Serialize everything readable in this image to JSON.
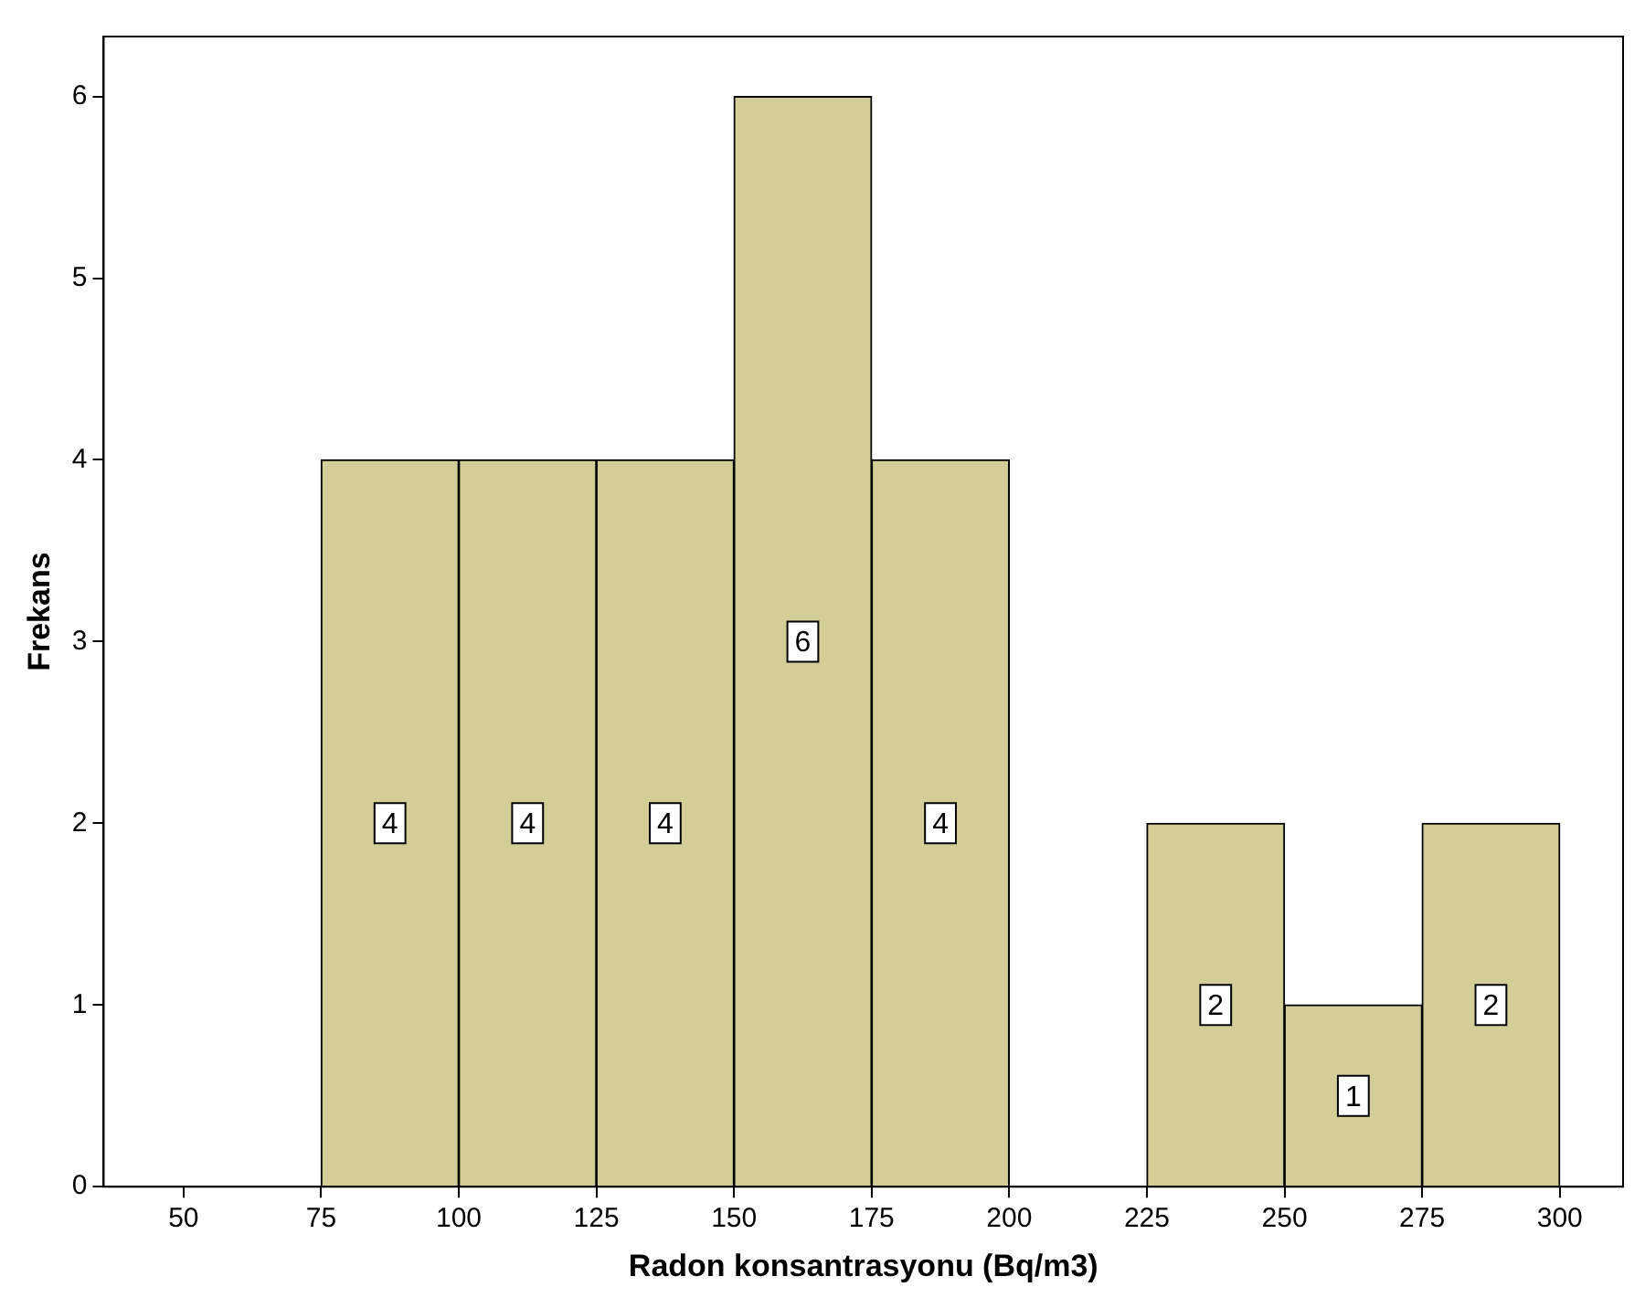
{
  "chart_data": {
    "type": "histogram",
    "xlabel": "Radon konsantrasyonu (Bq/m3)",
    "ylabel": "Frekans",
    "bins": [
      75,
      100,
      125,
      150,
      175,
      200,
      225,
      250,
      275,
      300
    ],
    "values": [
      4,
      4,
      4,
      6,
      4,
      0,
      2,
      1,
      2
    ],
    "value_labels": [
      "4",
      "4",
      "4",
      "6",
      "4",
      null,
      "2",
      "1",
      "2"
    ],
    "color": "#d3ce97",
    "xlim": [
      35.5,
      311.5
    ],
    "xticks": [
      50,
      75,
      100,
      125,
      150,
      175,
      200,
      225,
      250,
      275,
      300
    ],
    "ylim": [
      0,
      6.33
    ],
    "yticks": [
      0,
      1,
      2,
      3,
      4,
      5,
      6
    ],
    "grid": false,
    "legend": false
  }
}
